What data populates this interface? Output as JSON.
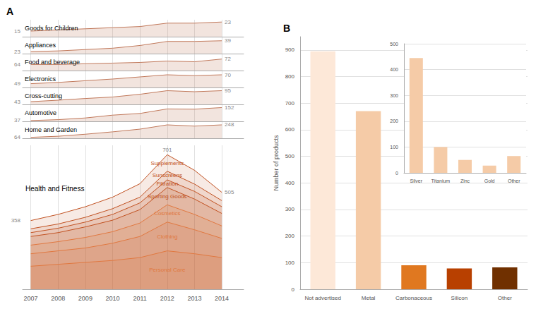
{
  "chart_data": [
    {
      "type": "area",
      "title": "A",
      "x": [
        2007,
        2008,
        2009,
        2010,
        2011,
        2012,
        2013,
        2014
      ],
      "xlim": [
        2006.7,
        2014.8
      ],
      "xticks": [
        2007,
        2008,
        2009,
        2010,
        2011,
        2012,
        2013,
        2014
      ],
      "grid": true,
      "tick_labels": false,
      "series": [
        {
          "name": "Goods for Children",
          "color": "#c0785a",
          "values": [
            15,
            16,
            17,
            18,
            19,
            22,
            22,
            23
          ],
          "ylim": [
            10,
            25
          ],
          "value_labels": [
            "15",
            null,
            null,
            null,
            null,
            null,
            null,
            "23"
          ]
        },
        {
          "name": "Appliances",
          "color": "#c0785a",
          "values": [
            23,
            24,
            26,
            28,
            32,
            38,
            38,
            39
          ],
          "ylim": [
            20,
            45
          ],
          "value_labels": [
            "23",
            null,
            null,
            null,
            null,
            null,
            null,
            "39"
          ]
        },
        {
          "name": "Food and beverage",
          "color": "#c0785a",
          "values": [
            64,
            64,
            65,
            66,
            67,
            69,
            68,
            72
          ],
          "ylim": [
            55,
            80
          ],
          "value_labels": [
            "64",
            null,
            null,
            null,
            null,
            null,
            null,
            "72"
          ]
        },
        {
          "name": "Electronics",
          "color": "#c0785a",
          "values": [
            49,
            52,
            56,
            60,
            65,
            70,
            68,
            70
          ],
          "ylim": [
            40,
            80
          ],
          "value_labels": [
            "49",
            null,
            null,
            null,
            null,
            null,
            null,
            "70"
          ]
        },
        {
          "name": "Cross-cutting",
          "color": "#c0785a",
          "values": [
            43,
            50,
            58,
            65,
            78,
            95,
            90,
            95
          ],
          "ylim": [
            30,
            110
          ],
          "value_labels": [
            "43",
            null,
            null,
            null,
            null,
            null,
            null,
            "95"
          ]
        },
        {
          "name": "Automotive",
          "color": "#c0785a",
          "values": [
            37,
            45,
            60,
            85,
            100,
            140,
            138,
            152
          ],
          "ylim": [
            30,
            180
          ],
          "value_labels": [
            "37",
            null,
            null,
            null,
            null,
            null,
            null,
            "152"
          ]
        },
        {
          "name": "Home and Garden",
          "color": "#c0785a",
          "values": [
            64,
            80,
            110,
            145,
            185,
            248,
            230,
            248
          ],
          "ylim": [
            50,
            300
          ],
          "value_labels": [
            "64",
            null,
            null,
            null,
            null,
            null,
            null,
            "248"
          ]
        }
      ]
    },
    {
      "type": "area",
      "title": "Health and Fitness",
      "x": [
        2007,
        2008,
        2009,
        2010,
        2011,
        2012,
        2013,
        2014
      ],
      "xlim": [
        2006.7,
        2014.8
      ],
      "xticks": [
        2007,
        2008,
        2009,
        2010,
        2011,
        2012,
        2013,
        2014
      ],
      "ylim": [
        0,
        750
      ],
      "grid": true,
      "tick_labels": "x",
      "series": [
        {
          "name": "Personal Care",
          "color": "#e07840",
          "values": [
            120,
            130,
            140,
            150,
            165,
            200,
            185,
            165
          ]
        },
        {
          "name": "Clothing",
          "color": "#e07840",
          "values": [
            185,
            200,
            215,
            240,
            275,
            350,
            310,
            265
          ]
        },
        {
          "name": "Cosmetics",
          "color": "#e07840",
          "values": [
            230,
            248,
            270,
            300,
            345,
            440,
            390,
            330
          ]
        },
        {
          "name": "Sporting Goods",
          "color": "#c05020",
          "values": [
            275,
            295,
            325,
            360,
            415,
            530,
            470,
            395
          ]
        },
        {
          "name": "Filtration",
          "color": "#c05020",
          "values": [
            295,
            318,
            350,
            390,
            450,
            570,
            510,
            430
          ]
        },
        {
          "name": "Sunscreens",
          "color": "#c05020",
          "values": [
            315,
            340,
            375,
            420,
            480,
            615,
            548,
            462
          ]
        },
        {
          "name": "Supplements",
          "color": "#c05020",
          "values": [
            358,
            390,
            430,
            480,
            550,
            701,
            620,
            505
          ],
          "value_labels": [
            "358",
            null,
            null,
            null,
            null,
            "701",
            null,
            "505"
          ]
        }
      ]
    },
    {
      "type": "bar",
      "title": "B",
      "categories": [
        "Not advertised",
        "Metal",
        "Carbonaceous",
        "Silicon",
        "Other"
      ],
      "values": [
        895,
        670,
        90,
        78,
        82
      ],
      "colors": [
        "#fde8d8",
        "#f5cba7",
        "#e07820",
        "#b84000",
        "#703000"
      ],
      "ylabel": "Number of products",
      "ylim": [
        0,
        950
      ],
      "yticks": [
        0,
        100,
        200,
        300,
        400,
        500,
        600,
        700,
        800,
        900
      ],
      "grid": true
    },
    {
      "type": "bar",
      "categories": [
        "Silver",
        "Titanium",
        "Zinc",
        "Gold",
        "Other"
      ],
      "values": [
        445,
        100,
        50,
        28,
        65
      ],
      "color": "#f5cba7",
      "ylim": [
        0,
        500
      ],
      "yticks": [
        0,
        100,
        200,
        300,
        400,
        500
      ],
      "grid": true
    }
  ]
}
